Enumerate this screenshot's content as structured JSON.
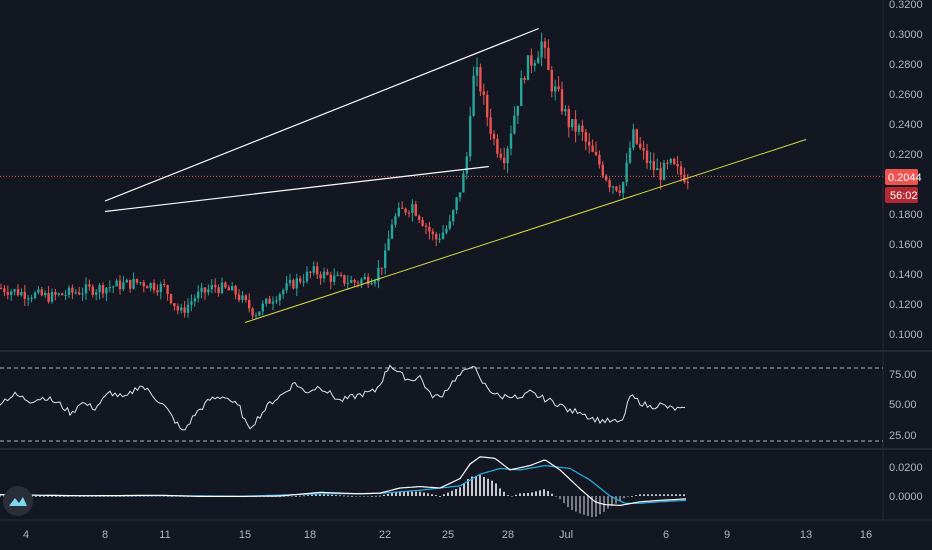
{
  "colors": {
    "background": "#131722",
    "up": "#26a69a",
    "down": "#ef5350",
    "axis_text": "#b2b5be",
    "separator": "#363a45",
    "price_line": "#ef5350",
    "trendline_yellow": "#d8d840",
    "wedge_lines": "#ffffff",
    "rsi_line": "#e0e3eb",
    "macd_line": "#ffffff",
    "signal_line": "#2ab0e8",
    "hist_up": "#c8cad0",
    "hist_down": "#787b86"
  },
  "price_axis": {
    "ticks": [
      "0.3200",
      "0.3000",
      "0.2800",
      "0.2600",
      "0.2400",
      "0.2200",
      "0.1800",
      "0.1600",
      "0.1400",
      "0.1200",
      "0.1000"
    ],
    "current_price": "0.2044",
    "countdown": "56:02"
  },
  "rsi_axis": {
    "ticks": [
      "75.00",
      "50.00",
      "25.00"
    ]
  },
  "macd_axis": {
    "ticks": [
      "0.0200",
      "0.0000"
    ]
  },
  "time_axis": {
    "ticks": [
      "4",
      "8",
      "11",
      "15",
      "18",
      "22",
      "25",
      "28",
      "Jul",
      "6",
      "9",
      "13",
      "16"
    ]
  },
  "icons": {
    "logo": "tradingview-logo-icon"
  },
  "chart_data": [
    {
      "type": "candlestick",
      "ylim": [
        0.09,
        0.32
      ],
      "current_price": 0.2044,
      "anchors": [
        [
          0,
          0.13
        ],
        [
          20,
          0.127
        ],
        [
          50,
          0.124
        ],
        [
          80,
          0.128
        ],
        [
          110,
          0.131
        ],
        [
          140,
          0.134
        ],
        [
          165,
          0.13
        ],
        [
          180,
          0.113
        ],
        [
          195,
          0.124
        ],
        [
          215,
          0.131
        ],
        [
          235,
          0.127
        ],
        [
          255,
          0.113
        ],
        [
          275,
          0.125
        ],
        [
          300,
          0.136
        ],
        [
          315,
          0.141
        ],
        [
          335,
          0.136
        ],
        [
          355,
          0.134
        ],
        [
          375,
          0.138
        ],
        [
          385,
          0.15
        ],
        [
          392,
          0.174
        ],
        [
          400,
          0.18
        ],
        [
          412,
          0.186
        ],
        [
          420,
          0.178
        ],
        [
          435,
          0.162
        ],
        [
          450,
          0.172
        ],
        [
          460,
          0.196
        ],
        [
          466,
          0.21
        ],
        [
          472,
          0.268
        ],
        [
          478,
          0.272
        ],
        [
          485,
          0.25
        ],
        [
          495,
          0.226
        ],
        [
          505,
          0.218
        ],
        [
          515,
          0.248
        ],
        [
          525,
          0.276
        ],
        [
          535,
          0.285
        ],
        [
          542,
          0.294
        ],
        [
          550,
          0.268
        ],
        [
          560,
          0.255
        ],
        [
          570,
          0.238
        ],
        [
          580,
          0.235
        ],
        [
          590,
          0.221
        ],
        [
          600,
          0.212
        ],
        [
          610,
          0.2
        ],
        [
          622,
          0.197
        ],
        [
          628,
          0.214
        ],
        [
          632,
          0.233
        ],
        [
          640,
          0.222
        ],
        [
          650,
          0.212
        ],
        [
          660,
          0.206
        ],
        [
          670,
          0.212
        ],
        [
          680,
          0.206
        ],
        [
          688,
          0.204
        ]
      ],
      "patterns": [
        {
          "name": "ascending-trendline",
          "from": [
            "15",
            0.107
          ],
          "to": [
            "13",
            0.229
          ]
        },
        {
          "name": "wedge-upper",
          "from": [
            "29",
            0.303
          ],
          "to": [
            "8",
            0.188
          ]
        },
        {
          "name": "wedge-lower",
          "from": [
            "26",
            0.211
          ],
          "to": [
            "8",
            0.181
          ]
        }
      ]
    },
    {
      "type": "line",
      "name": "RSI",
      "ylim": [
        18,
        92
      ],
      "levels": [
        80,
        20
      ],
      "anchors": [
        [
          0,
          52
        ],
        [
          15,
          58
        ],
        [
          30,
          53
        ],
        [
          45,
          56
        ],
        [
          60,
          50
        ],
        [
          72,
          42
        ],
        [
          80,
          52
        ],
        [
          95,
          47
        ],
        [
          110,
          60
        ],
        [
          125,
          55
        ],
        [
          140,
          66
        ],
        [
          150,
          60
        ],
        [
          165,
          48
        ],
        [
          178,
          33
        ],
        [
          183,
          27
        ],
        [
          195,
          42
        ],
        [
          210,
          54
        ],
        [
          225,
          57
        ],
        [
          240,
          47
        ],
        [
          248,
          30
        ],
        [
          255,
          36
        ],
        [
          270,
          51
        ],
        [
          285,
          60
        ],
        [
          295,
          68
        ],
        [
          305,
          60
        ],
        [
          320,
          65
        ],
        [
          340,
          53
        ],
        [
          360,
          58
        ],
        [
          375,
          61
        ],
        [
          382,
          70
        ],
        [
          390,
          83
        ],
        [
          400,
          75
        ],
        [
          410,
          70
        ],
        [
          420,
          73
        ],
        [
          430,
          58
        ],
        [
          440,
          56
        ],
        [
          455,
          71
        ],
        [
          465,
          77
        ],
        [
          472,
          84
        ],
        [
          480,
          70
        ],
        [
          490,
          62
        ],
        [
          500,
          56
        ],
        [
          510,
          58
        ],
        [
          520,
          54
        ],
        [
          530,
          60
        ],
        [
          540,
          56
        ],
        [
          550,
          53
        ],
        [
          560,
          50
        ],
        [
          570,
          44
        ],
        [
          580,
          45
        ],
        [
          590,
          39
        ],
        [
          600,
          37
        ],
        [
          612,
          36
        ],
        [
          620,
          35
        ],
        [
          625,
          42
        ],
        [
          630,
          57
        ],
        [
          640,
          52
        ],
        [
          650,
          48
        ],
        [
          660,
          50
        ],
        [
          670,
          47
        ],
        [
          680,
          46
        ],
        [
          686,
          45
        ]
      ]
    },
    {
      "type": "line",
      "name": "MACD",
      "ylim": [
        -0.01,
        0.03
      ],
      "anchors_macd": [
        [
          0,
          0.001
        ],
        [
          40,
          0.0005
        ],
        [
          80,
          0.0002
        ],
        [
          120,
          0.0003
        ],
        [
          160,
          0.0005
        ],
        [
          200,
          -0.0003
        ],
        [
          240,
          -0.0003
        ],
        [
          280,
          0.0
        ],
        [
          320,
          0.0025
        ],
        [
          360,
          0.0015
        ],
        [
          380,
          0.002
        ],
        [
          400,
          0.0055
        ],
        [
          420,
          0.0065
        ],
        [
          440,
          0.0055
        ],
        [
          460,
          0.012
        ],
        [
          470,
          0.022
        ],
        [
          480,
          0.027
        ],
        [
          495,
          0.026
        ],
        [
          510,
          0.018
        ],
        [
          530,
          0.021
        ],
        [
          545,
          0.025
        ],
        [
          560,
          0.018
        ],
        [
          580,
          0.005
        ],
        [
          595,
          -0.004
        ],
        [
          605,
          -0.006
        ],
        [
          620,
          -0.0065
        ],
        [
          640,
          -0.004
        ],
        [
          660,
          -0.003
        ],
        [
          686,
          -0.002
        ]
      ],
      "anchors_signal": [
        [
          0,
          0.0008
        ],
        [
          80,
          0.0002
        ],
        [
          160,
          0.0003
        ],
        [
          240,
          -0.0002
        ],
        [
          320,
          0.0015
        ],
        [
          380,
          0.0018
        ],
        [
          420,
          0.004
        ],
        [
          460,
          0.007
        ],
        [
          480,
          0.015
        ],
        [
          500,
          0.019
        ],
        [
          520,
          0.018
        ],
        [
          545,
          0.021
        ],
        [
          570,
          0.019
        ],
        [
          590,
          0.011
        ],
        [
          610,
          0.0
        ],
        [
          625,
          -0.005
        ],
        [
          640,
          -0.005
        ],
        [
          660,
          -0.004
        ],
        [
          686,
          -0.003
        ]
      ]
    }
  ]
}
